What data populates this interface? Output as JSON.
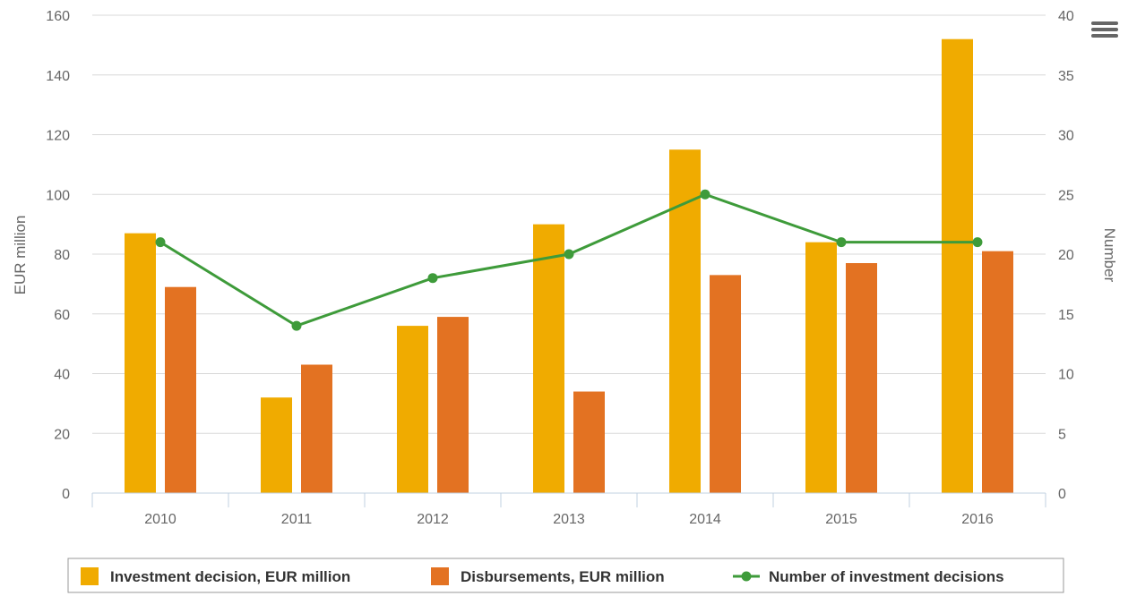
{
  "menu": {
    "icon": "hamburger-menu-icon"
  },
  "chart_data": {
    "type": "bar",
    "categories": [
      "2010",
      "2011",
      "2012",
      "2013",
      "2014",
      "2015",
      "2016"
    ],
    "series": [
      {
        "name": "Investment decision, EUR million",
        "type": "bar",
        "axis": "left",
        "color": "#f0ab00",
        "values": [
          87,
          32,
          56,
          90,
          115,
          84,
          152
        ]
      },
      {
        "name": "Disbursements, EUR million",
        "type": "bar",
        "axis": "left",
        "color": "#e37222",
        "values": [
          69,
          43,
          59,
          34,
          73,
          77,
          81
        ]
      },
      {
        "name": "Number of investment decisions",
        "type": "line",
        "axis": "right",
        "color": "#3e9b3a",
        "values": [
          21,
          14,
          18,
          20,
          25,
          21,
          21
        ]
      }
    ],
    "ylabel": "EUR million",
    "ylabel_right": "Number",
    "ylim": [
      0,
      160
    ],
    "yticks": [
      "0",
      "20",
      "40",
      "60",
      "80",
      "100",
      "120",
      "140",
      "160"
    ],
    "ylim_right": [
      0,
      40
    ],
    "yticks_right": [
      "0",
      "5",
      "10",
      "15",
      "20",
      "25",
      "30",
      "35",
      "40"
    ],
    "grid": true,
    "legend": "bottom"
  }
}
